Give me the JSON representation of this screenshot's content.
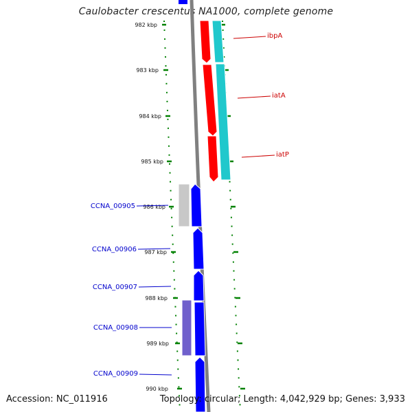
{
  "title": "Caulobacter crescentus NA1000, complete genome",
  "accession": "Accession: NC_011916",
  "topology": "Topology: circular; Length: 4,042,929 bp; Genes: 3,933",
  "colors": {
    "tick": "#008000",
    "backbone": "#808080",
    "red_gene": "#ff0000",
    "cyan_gene": "#20c8cc",
    "blue_gene": "#0000ff",
    "gray_gene": "#c8c8c8",
    "purple_gene": "#7060cc",
    "red_label": "#cc0000",
    "blue_label": "#0000cc"
  },
  "ticks": [
    "982 kbp",
    "983 kbp",
    "984 kbp",
    "985 kbp",
    "986 kbp",
    "987 kbp",
    "988 kbp",
    "989 kbp",
    "990 kbp"
  ],
  "genes_right": [
    "ibpA",
    "iatA",
    "iatP"
  ],
  "genes_left": [
    "CCNA_00905",
    "CCNA_00906",
    "CCNA_00907",
    "CCNA_00908",
    "CCNA_00909"
  ]
}
